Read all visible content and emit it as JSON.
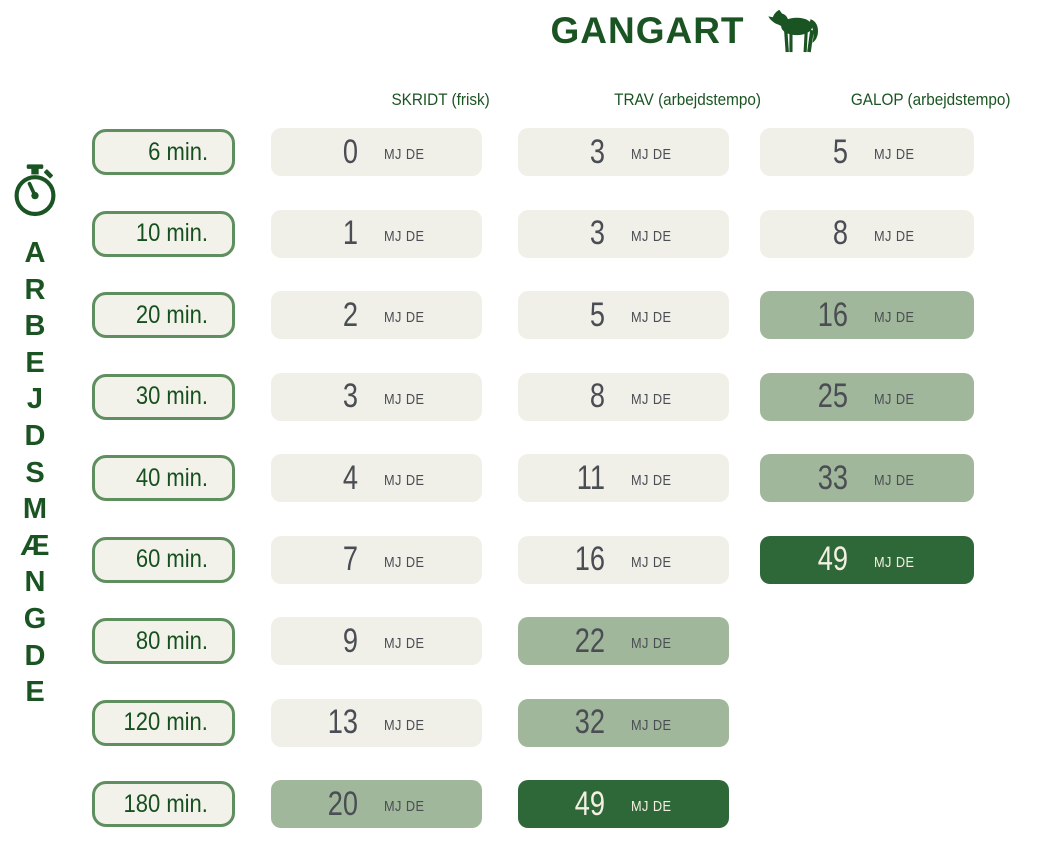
{
  "title": "GANGART",
  "left_axis_label": "ARBEJDSMÆNGDE",
  "unit": "MJ DE",
  "columns": [
    {
      "label": "SKRIDT (frisk)"
    },
    {
      "label": "TRAV (arbejdstempo)"
    },
    {
      "label": "GALOP (arbejdstempo)"
    }
  ],
  "rows": [
    {
      "time": "6 min.",
      "cells": [
        {
          "value": "0",
          "level": "low"
        },
        {
          "value": "3",
          "level": "low"
        },
        {
          "value": "5",
          "level": "low"
        }
      ]
    },
    {
      "time": "10 min.",
      "cells": [
        {
          "value": "1",
          "level": "low"
        },
        {
          "value": "3",
          "level": "low"
        },
        {
          "value": "8",
          "level": "low"
        }
      ]
    },
    {
      "time": "20 min.",
      "cells": [
        {
          "value": "2",
          "level": "low"
        },
        {
          "value": "5",
          "level": "low"
        },
        {
          "value": "16",
          "level": "mid"
        }
      ]
    },
    {
      "time": "30 min.",
      "cells": [
        {
          "value": "3",
          "level": "low"
        },
        {
          "value": "8",
          "level": "low"
        },
        {
          "value": "25",
          "level": "mid"
        }
      ]
    },
    {
      "time": "40 min.",
      "cells": [
        {
          "value": "4",
          "level": "low"
        },
        {
          "value": "11",
          "level": "low"
        },
        {
          "value": "33",
          "level": "mid"
        }
      ]
    },
    {
      "time": "60 min.",
      "cells": [
        {
          "value": "7",
          "level": "low"
        },
        {
          "value": "16",
          "level": "low"
        },
        {
          "value": "49",
          "level": "high"
        }
      ]
    },
    {
      "time": "80 min.",
      "cells": [
        {
          "value": "9",
          "level": "low"
        },
        {
          "value": "22",
          "level": "mid"
        },
        null
      ]
    },
    {
      "time": "120 min.",
      "cells": [
        {
          "value": "13",
          "level": "low"
        },
        {
          "value": "32",
          "level": "mid"
        },
        null
      ]
    },
    {
      "time": "180 min.",
      "cells": [
        {
          "value": "20",
          "level": "mid"
        },
        {
          "value": "49",
          "level": "high"
        },
        null
      ]
    }
  ],
  "colors": {
    "title_green": "#1b5423",
    "button_border": "#5f8e5f",
    "button_bg": "#f3f2ea",
    "cell_low_bg": "#f1f0e8",
    "cell_mid_bg": "#a1b79b",
    "cell_high_bg": "#2f6838",
    "value_text": "#4a4e54",
    "high_cell_text": "#f3efe2"
  },
  "icons": {
    "horse": "horse-icon",
    "stopwatch": "stopwatch-icon"
  },
  "chart_data": {
    "type": "heatmap",
    "title": "GANGART",
    "row_axis_label": "ARBEJDSMÆNGDE",
    "unit": "MJ DE",
    "categories": [
      "6 min.",
      "10 min.",
      "20 min.",
      "30 min.",
      "40 min.",
      "60 min.",
      "80 min.",
      "120 min.",
      "180 min."
    ],
    "series": [
      {
        "name": "SKRIDT (frisk)",
        "values": [
          0,
          1,
          2,
          3,
          4,
          7,
          9,
          13,
          20
        ]
      },
      {
        "name": "TRAV (arbejdstempo)",
        "values": [
          3,
          3,
          5,
          8,
          11,
          16,
          22,
          32,
          49
        ]
      },
      {
        "name": "GALOP (arbejdstempo)",
        "values": [
          5,
          8,
          16,
          25,
          33,
          49,
          null,
          null,
          null
        ]
      }
    ],
    "legend_position": "none",
    "notes": "Cell shading encodes intensity: cream = low, sage green = medium, dark green = high (49 MJ DE max)."
  }
}
